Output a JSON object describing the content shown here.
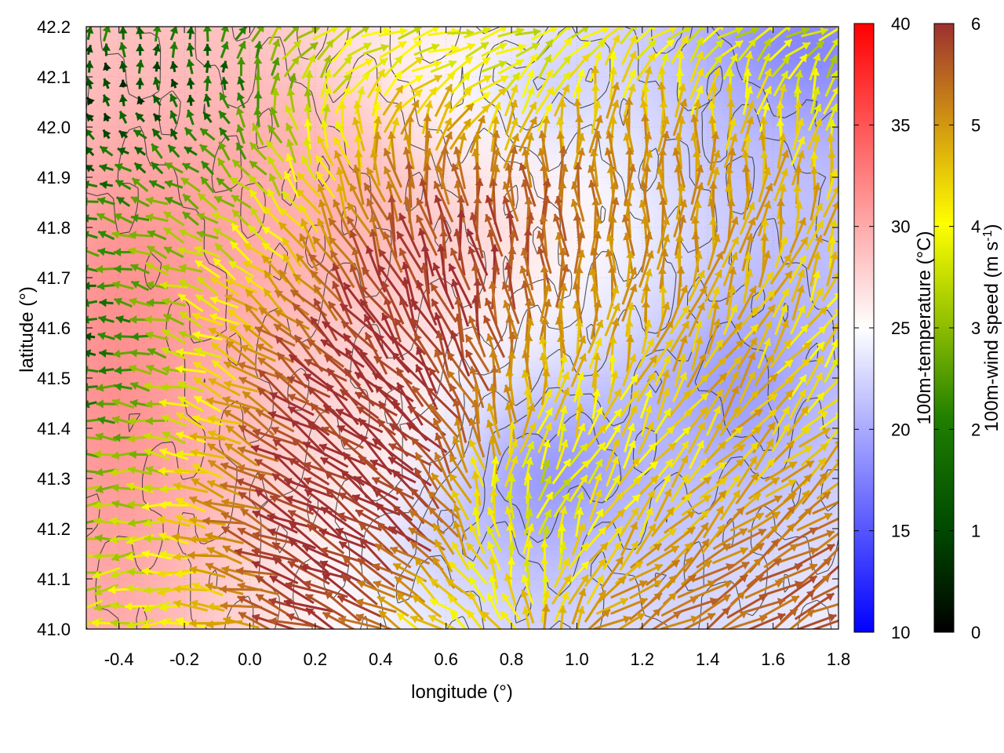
{
  "chart_data": {
    "type": "heatmap",
    "title": "",
    "xlabel": "longitude (°)",
    "ylabel": "latitude (°)",
    "xlim": [
      -0.5,
      1.8
    ],
    "ylim": [
      41.0,
      42.2
    ],
    "x_ticks": [
      "-0.4",
      "-0.2",
      "0.0",
      "0.2",
      "0.4",
      "0.6",
      "0.8",
      "1.0",
      "1.2",
      "1.4",
      "1.6",
      "1.8"
    ],
    "y_ticks": [
      "41.0",
      "41.1",
      "41.2",
      "41.3",
      "41.4",
      "41.5",
      "41.6",
      "41.7",
      "41.8",
      "41.9",
      "42.0",
      "42.1",
      "42.2"
    ],
    "grid": true,
    "layers": {
      "temperature": {
        "label": "100m-temperature (°C)",
        "range": [
          10,
          40
        ],
        "ticks": [
          "10",
          "15",
          "20",
          "25",
          "30",
          "35",
          "40"
        ],
        "colors": [
          "#0000ff",
          "#ffffff",
          "#ff0000"
        ]
      },
      "wind": {
        "label_main": "100m-wind speed (m s",
        "label_sup": "-1",
        "label_end": ")",
        "range": [
          0,
          6
        ],
        "ticks": [
          "0",
          "1",
          "2",
          "3",
          "4",
          "5",
          "6"
        ],
        "colors": [
          "#000000",
          "#005000",
          "#2a8a00",
          "#9cc000",
          "#ffff00",
          "#d8a000",
          "#c07020",
          "#a03030"
        ]
      }
    },
    "temperature_field": {
      "lon": [
        -0.5,
        -0.3,
        -0.1,
        0.1,
        0.3,
        0.5,
        0.7,
        0.9,
        1.1,
        1.3,
        1.5,
        1.7,
        1.8
      ],
      "lat": [
        41.0,
        41.1,
        41.2,
        41.3,
        41.4,
        41.5,
        41.6,
        41.7,
        41.8,
        41.9,
        42.0,
        42.1,
        42.2
      ],
      "values": [
        [
          32,
          31,
          29,
          27,
          25,
          24,
          23,
          21,
          23,
          22,
          23,
          24,
          24
        ],
        [
          32,
          31,
          29,
          27,
          25,
          22,
          22,
          20,
          22,
          21,
          22,
          23,
          23
        ],
        [
          33,
          32,
          30,
          27,
          26,
          21,
          20,
          18,
          20,
          21,
          21,
          22,
          22
        ],
        [
          33,
          32,
          31,
          28,
          27,
          26,
          19,
          15,
          18,
          20,
          20,
          21,
          21
        ],
        [
          34,
          33,
          31,
          29,
          28,
          26,
          22,
          17,
          19,
          20,
          17,
          20,
          20
        ],
        [
          34,
          33,
          31,
          29,
          28,
          27,
          24,
          22,
          21,
          18,
          16,
          19,
          20
        ],
        [
          34,
          33,
          32,
          30,
          29,
          28,
          26,
          24,
          23,
          21,
          18,
          19,
          20
        ],
        [
          34,
          33,
          32,
          31,
          30,
          29,
          28,
          26,
          24,
          22,
          20,
          20,
          20
        ],
        [
          33,
          33,
          32,
          31,
          31,
          30,
          28,
          27,
          25,
          23,
          21,
          20,
          20
        ],
        [
          32,
          32,
          32,
          31,
          31,
          29,
          27,
          26,
          24,
          22,
          20,
          21,
          20
        ],
        [
          31,
          31,
          31,
          31,
          30,
          27,
          25,
          22,
          24,
          21,
          20,
          19,
          18
        ],
        [
          30,
          30,
          30,
          30,
          28,
          26,
          24,
          19,
          22,
          21,
          18,
          16,
          16
        ],
        [
          30,
          30,
          30,
          29,
          27,
          26,
          27,
          24,
          22,
          20,
          16,
          14,
          15
        ]
      ]
    },
    "wind_field": {
      "lon": [
        -0.5,
        -0.3,
        -0.1,
        0.1,
        0.3,
        0.5,
        0.7,
        0.9,
        1.1,
        1.3,
        1.5,
        1.7,
        1.8
      ],
      "lat": [
        41.0,
        41.1,
        41.2,
        41.3,
        41.4,
        41.5,
        41.6,
        41.7,
        41.8,
        41.9,
        42.0,
        42.1,
        42.2
      ],
      "speed": [
        [
          3.0,
          3.2,
          4.0,
          5.8,
          5.5,
          3.8,
          3.6,
          4.2,
          4.6,
          5.0,
          5.2,
          5.4,
          5.4
        ],
        [
          2.8,
          3.2,
          4.4,
          6.0,
          6.0,
          4.5,
          3.5,
          3.4,
          4.2,
          4.8,
          5.2,
          5.4,
          5.4
        ],
        [
          2.6,
          3.0,
          4.8,
          6.0,
          6.0,
          5.8,
          3.6,
          3.2,
          3.8,
          4.2,
          4.6,
          5.0,
          5.0
        ],
        [
          2.4,
          2.8,
          4.4,
          6.0,
          6.0,
          6.0,
          3.6,
          3.0,
          3.6,
          3.8,
          4.0,
          4.4,
          4.4
        ],
        [
          2.0,
          2.6,
          4.0,
          5.8,
          6.0,
          6.0,
          4.8,
          3.6,
          3.6,
          3.6,
          4.2,
          3.8,
          3.6
        ],
        [
          1.4,
          2.4,
          3.8,
          5.6,
          6.0,
          6.0,
          5.2,
          4.0,
          3.8,
          4.0,
          4.4,
          3.6,
          3.4
        ],
        [
          1.0,
          2.2,
          3.6,
          5.0,
          6.0,
          6.0,
          5.6,
          4.6,
          4.2,
          4.2,
          4.0,
          3.8,
          3.6
        ],
        [
          1.6,
          2.4,
          3.4,
          4.2,
          5.6,
          6.0,
          5.8,
          5.2,
          4.6,
          4.4,
          4.2,
          4.0,
          3.8
        ],
        [
          1.8,
          2.4,
          2.6,
          3.6,
          5.0,
          5.6,
          5.8,
          5.4,
          4.8,
          4.6,
          4.4,
          4.2,
          4.0
        ],
        [
          1.2,
          1.8,
          2.2,
          3.0,
          4.2,
          5.2,
          5.0,
          5.2,
          4.8,
          4.6,
          4.4,
          4.2,
          4.0
        ],
        [
          0.8,
          1.0,
          1.6,
          2.6,
          3.6,
          4.4,
          4.2,
          4.0,
          4.4,
          4.4,
          4.0,
          3.6,
          3.4
        ],
        [
          0.6,
          0.8,
          1.0,
          2.4,
          3.2,
          3.6,
          3.4,
          3.2,
          3.8,
          3.6,
          3.4,
          3.2,
          3.0
        ],
        [
          1.4,
          1.4,
          1.6,
          2.6,
          3.0,
          3.2,
          3.2,
          3.0,
          3.4,
          3.2,
          3.0,
          3.0,
          3.0
        ]
      ],
      "direction_deg": [
        [
          190,
          185,
          175,
          160,
          155,
          150,
          140,
          100,
          30,
          30,
          30,
          30,
          30
        ],
        [
          190,
          185,
          170,
          155,
          150,
          145,
          120,
          80,
          40,
          35,
          32,
          30,
          30
        ],
        [
          185,
          180,
          165,
          152,
          148,
          142,
          110,
          80,
          60,
          50,
          40,
          35,
          35
        ],
        [
          182,
          175,
          160,
          150,
          145,
          140,
          100,
          60,
          55,
          50,
          45,
          40,
          40
        ],
        [
          180,
          172,
          158,
          148,
          142,
          138,
          105,
          70,
          65,
          55,
          50,
          45,
          45
        ],
        [
          180,
          170,
          155,
          145,
          138,
          130,
          110,
          85,
          75,
          60,
          55,
          50,
          50
        ],
        [
          180,
          168,
          152,
          140,
          130,
          120,
          105,
          90,
          80,
          70,
          60,
          55,
          55
        ],
        [
          175,
          165,
          150,
          135,
          120,
          110,
          100,
          92,
          88,
          80,
          70,
          65,
          65
        ],
        [
          170,
          160,
          150,
          130,
          115,
          105,
          98,
          95,
          92,
          88,
          80,
          75,
          75
        ],
        [
          160,
          150,
          140,
          125,
          112,
          100,
          95,
          94,
          92,
          90,
          85,
          80,
          80
        ],
        [
          135,
          130,
          125,
          110,
          100,
          75,
          60,
          80,
          88,
          88,
          85,
          80,
          80
        ],
        [
          95,
          95,
          95,
          80,
          50,
          35,
          30,
          60,
          80,
          80,
          75,
          70,
          70
        ],
        [
          85,
          85,
          75,
          40,
          25,
          15,
          10,
          20,
          35,
          30,
          25,
          20,
          20
        ]
      ]
    }
  }
}
